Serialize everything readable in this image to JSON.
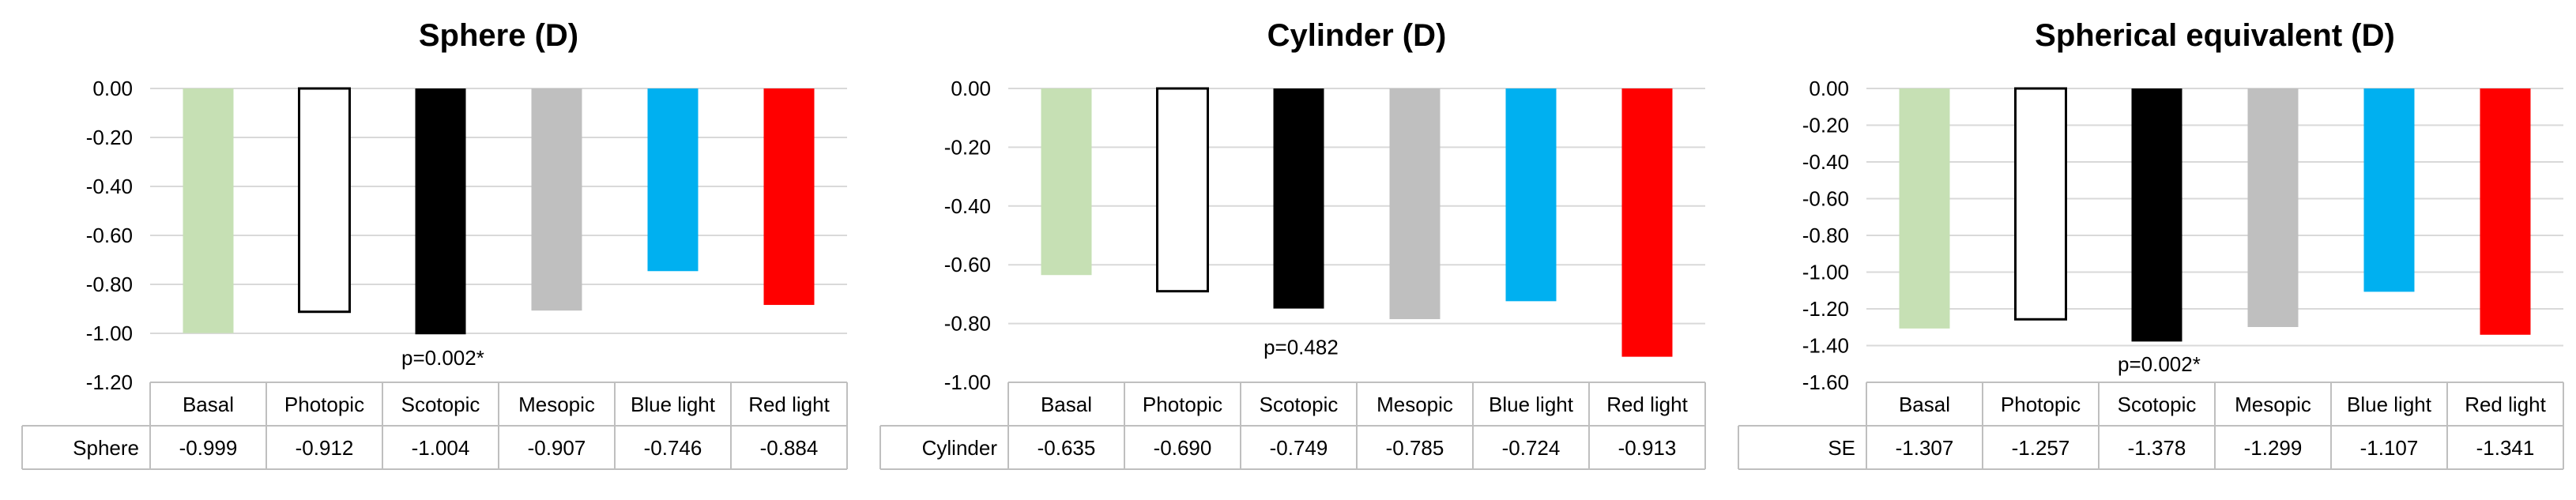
{
  "chart_data": [
    {
      "type": "bar",
      "title": "Sphere (D)",
      "categories": [
        "Basal",
        "Photopic",
        "Scotopic",
        "Mesopic",
        "Blue light",
        "Red light"
      ],
      "series": [
        {
          "name": "Sphere",
          "values": [
            -0.999,
            -0.912,
            -1.004,
            -0.907,
            -0.746,
            -0.884
          ]
        }
      ],
      "table_values": [
        "-0.999",
        "-0.912",
        "-1.004",
        "-0.907",
        "-0.746",
        "-0.884"
      ],
      "ylim": [
        -1.2,
        0
      ],
      "ystep": 0.2,
      "yticks": [
        "0.00",
        "-0.20",
        "-0.40",
        "-0.60",
        "-0.80",
        "-1.00",
        "-1.20"
      ],
      "annotation": "p=0.002*",
      "annotation_value": -1.1,
      "grid": true,
      "colors": [
        "#c6e0b4",
        "#ffffff",
        "#000000",
        "#bfbfbf",
        "#00b0f0",
        "#ff0000"
      ]
    },
    {
      "type": "bar",
      "title": "Cylinder (D)",
      "categories": [
        "Basal",
        "Photopic",
        "Scotopic",
        "Mesopic",
        "Blue light",
        "Red light"
      ],
      "series": [
        {
          "name": "Cylinder",
          "values": [
            -0.635,
            -0.69,
            -0.749,
            -0.785,
            -0.724,
            -0.913
          ]
        }
      ],
      "table_values": [
        "-0.635",
        "-0.690",
        "-0.749",
        "-0.785",
        "-0.724",
        "-0.913"
      ],
      "ylim": [
        -1.0,
        0
      ],
      "ystep": 0.2,
      "yticks": [
        "0.00",
        "-0.20",
        "-0.40",
        "-0.60",
        "-0.80",
        "-1.00"
      ],
      "annotation": "p=0.482",
      "annotation_value": -0.88,
      "grid": true,
      "colors": [
        "#c6e0b4",
        "#ffffff",
        "#000000",
        "#bfbfbf",
        "#00b0f0",
        "#ff0000"
      ]
    },
    {
      "type": "bar",
      "title": "Spherical equivalent (D)",
      "categories": [
        "Basal",
        "Photopic",
        "Scotopic",
        "Mesopic",
        "Blue light",
        "Red light"
      ],
      "series": [
        {
          "name": "SE",
          "values": [
            -1.307,
            -1.257,
            -1.378,
            -1.299,
            -1.107,
            -1.341
          ]
        }
      ],
      "table_values": [
        "-1.307",
        "-1.257",
        "-1.378",
        "-1.299",
        "-1.107",
        "-1.341"
      ],
      "ylim": [
        -1.6,
        0
      ],
      "ystep": 0.2,
      "yticks": [
        "0.00",
        "-0.20",
        "-0.40",
        "-0.60",
        "-0.80",
        "-1.00",
        "-1.20",
        "-1.40",
        "-1.60"
      ],
      "annotation": "p=0.002*",
      "annotation_value": -1.5,
      "grid": true,
      "colors": [
        "#c6e0b4",
        "#ffffff",
        "#000000",
        "#bfbfbf",
        "#00b0f0",
        "#ff0000"
      ]
    }
  ]
}
